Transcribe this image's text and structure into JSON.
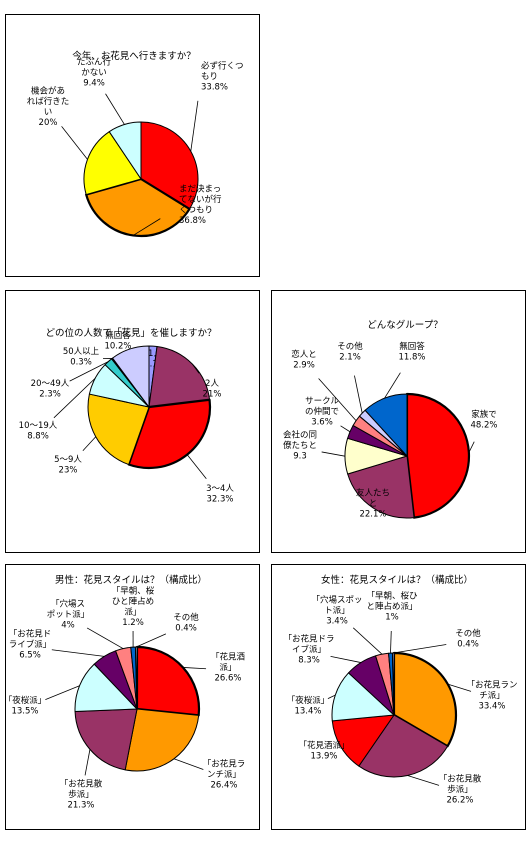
{
  "chart_data": [
    {
      "type": "pie",
      "title": "今年、お花見へ行きますか？",
      "slices": [
        {
          "label": [
            "必ず行くつ",
            "もり"
          ],
          "value_label": "33.8%",
          "value": 33.8,
          "color": "#ff0000"
        },
        {
          "label": [
            "まだ決まっ",
            "てないが行",
            "くつもり"
          ],
          "value_label": "36.8%",
          "value": 36.8,
          "color": "#ff9900"
        },
        {
          "label": [
            "機会があ",
            "れば行きた",
            "い"
          ],
          "value_label": "20%",
          "value": 20,
          "color": "#ffff00"
        },
        {
          "label": [
            "たぶん行",
            "かない"
          ],
          "value_label": "9.4%",
          "value": 9.4,
          "color": "#ccffff"
        }
      ]
    },
    {
      "type": "pie",
      "title": "どの位の人数で「花見」を催しますか？",
      "slices": [
        {
          "label": [
            "1人"
          ],
          "value_label": "2.1%",
          "value": 2.1,
          "color": "#9999ff"
        },
        {
          "label": [
            "2人"
          ],
          "value_label": "21%",
          "value": 21,
          "color": "#993366"
        },
        {
          "label": [
            "3～4人"
          ],
          "value_label": "32.3%",
          "value": 32.3,
          "color": "#ff0000"
        },
        {
          "label": [
            "5～9人"
          ],
          "value_label": "23%",
          "value": 23,
          "color": "#ffcc00"
        },
        {
          "label": [
            "10～19人"
          ],
          "value_label": "8.8%",
          "value": 8.8,
          "color": "#ccffff"
        },
        {
          "label": [
            "20～49人"
          ],
          "value_label": "2.3%",
          "value": 2.3,
          "color": "#33cccc"
        },
        {
          "label": [
            "50人以上"
          ],
          "value_label": "0.3%",
          "value": 0.3,
          "color": "#000080"
        },
        {
          "label": [
            "無回答"
          ],
          "value_label": "10.2%",
          "value": 10.2,
          "color": "#ccccff"
        }
      ]
    },
    {
      "type": "pie",
      "title": "どんなグループ？",
      "slices": [
        {
          "label": [
            "家族で"
          ],
          "value_label": "48.2%",
          "value": 48.2,
          "color": "#ff0000"
        },
        {
          "label": [
            "友人たち",
            "と"
          ],
          "value_label": "22.1%",
          "value": 22.1,
          "color": "#993366"
        },
        {
          "label": [
            "会社の同",
            "僚たちと"
          ],
          "value_label": "9.3",
          "value": 9.3,
          "color": "#ffffcc"
        },
        {
          "label": [
            "サークル",
            "の仲間で"
          ],
          "value_label": "3.6%",
          "value": 3.6,
          "color": "#660066"
        },
        {
          "label": [
            "恋人と"
          ],
          "value_label": "2.9%",
          "value": 2.9,
          "color": "#ff8080"
        },
        {
          "label": [
            "その他"
          ],
          "value_label": "2.1%",
          "value": 2.1,
          "color": "#ccccff"
        },
        {
          "label": [
            "無回答"
          ],
          "value_label": "11.8%",
          "value": 11.8,
          "color": "#0066cc"
        }
      ]
    },
    {
      "type": "pie",
      "title": "男性：花見スタイルは？（構成比）",
      "slices": [
        {
          "label": [
            "「花見酒",
            "派」"
          ],
          "value_label": "26.6%",
          "value": 26.6,
          "color": "#ff0000"
        },
        {
          "label": [
            "「お花見ラ",
            "ンチ派」"
          ],
          "value_label": "26.4%",
          "value": 26.4,
          "color": "#ff9900"
        },
        {
          "label": [
            "「お花見散",
            "歩派」"
          ],
          "value_label": "21.3%",
          "value": 21.3,
          "color": "#993366"
        },
        {
          "label": [
            "「夜桜派」"
          ],
          "value_label": "13.5%",
          "value": 13.5,
          "color": "#ccffff"
        },
        {
          "label": [
            "「お花見ド",
            "ライブ派」"
          ],
          "value_label": "6.5%",
          "value": 6.5,
          "color": "#660066"
        },
        {
          "label": [
            "「穴場ス",
            "ポット派」"
          ],
          "value_label": "4%",
          "value": 4,
          "color": "#ff8080"
        },
        {
          "label": [
            "「早朝、桜",
            "ひと陣占め",
            "派」"
          ],
          "value_label": "1.2%",
          "value": 1.2,
          "color": "#0066cc"
        },
        {
          "label": [
            "その他"
          ],
          "value_label": "0.4%",
          "value": 0.4,
          "color": "#ccccff"
        }
      ]
    },
    {
      "type": "pie",
      "title": "女性：花見スタイルは？（構成比）",
      "slices": [
        {
          "label": [
            "「お花見ラン",
            "チ派」"
          ],
          "value_label": "33.4%",
          "value": 33.4,
          "color": "#ff9900"
        },
        {
          "label": [
            "「お花見散",
            "歩派」"
          ],
          "value_label": "26.2%",
          "value": 26.2,
          "color": "#993366"
        },
        {
          "label": [
            "「花見酒派」"
          ],
          "value_label": "13.9%",
          "value": 13.9,
          "color": "#ff0000"
        },
        {
          "label": [
            "「夜桜派」"
          ],
          "value_label": "13.4%",
          "value": 13.4,
          "color": "#ccffff"
        },
        {
          "label": [
            "「お花見ドラ",
            "イブ派」"
          ],
          "value_label": "8.3%",
          "value": 8.3,
          "color": "#660066"
        },
        {
          "label": [
            "「穴場スポッ",
            "ト派」"
          ],
          "value_label": "3.4%",
          "value": 3.4,
          "color": "#ff8080"
        },
        {
          "label": [
            "「早朝、桜ひ",
            "と陣占め派」"
          ],
          "value_label": "1%",
          "value": 1,
          "color": "#0066cc"
        },
        {
          "label": [
            "その他"
          ],
          "value_label": "0.4%",
          "value": 0.4,
          "color": "#ccccff"
        }
      ]
    }
  ]
}
